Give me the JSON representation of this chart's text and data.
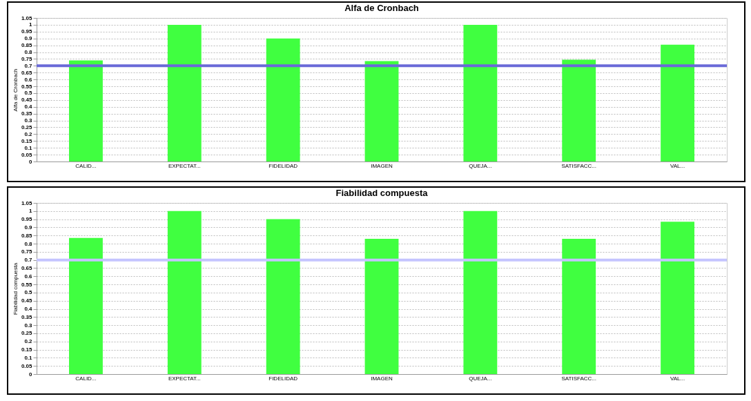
{
  "chart_data": [
    {
      "type": "bar",
      "title": "Alfa de Cronbach",
      "ylabel": "Alfa de Cronbach",
      "categories": [
        "CALID...",
        "EXPECTAT...",
        "FIDELIDAD",
        "IMAGEN",
        "QUEJA...",
        "SATISFACC...",
        "VAL..."
      ],
      "values": [
        0.74,
        1.0,
        0.9,
        0.735,
        1.0,
        0.745,
        0.855
      ],
      "color": "#40ff40",
      "ylim": [
        0,
        1.05
      ],
      "yticks": [
        0,
        0.05,
        0.1,
        0.15,
        0.2,
        0.25,
        0.3,
        0.35,
        0.4,
        0.45,
        0.5,
        0.55,
        0.6,
        0.65,
        0.7,
        0.75,
        0.8,
        0.85,
        0.9,
        0.95,
        1,
        1.05
      ],
      "grid": "y",
      "ref_lines": [
        {
          "axis": "y",
          "value": 0.7,
          "color": "#6a6ad8"
        }
      ]
    },
    {
      "type": "bar",
      "title": "Fiabilidad compuesta",
      "ylabel": "Fiabilidad compuesta",
      "categories": [
        "CALID...",
        "EXPECTAT...",
        "FIDELIDAD",
        "IMAGEN",
        "QUEJA...",
        "SATISFACC...",
        "VAL..."
      ],
      "values": [
        0.835,
        1.0,
        0.95,
        0.83,
        1.0,
        0.83,
        0.935
      ],
      "color": "#40ff40",
      "ylim": [
        0,
        1.05
      ],
      "yticks": [
        0,
        0.05,
        0.1,
        0.15,
        0.2,
        0.25,
        0.3,
        0.35,
        0.4,
        0.45,
        0.5,
        0.55,
        0.6,
        0.65,
        0.7,
        0.75,
        0.8,
        0.85,
        0.9,
        0.95,
        1,
        1.05
      ],
      "grid": "y",
      "ref_lines": [
        {
          "axis": "y",
          "value": 0.7,
          "color": "#c4c4ff"
        }
      ]
    }
  ]
}
